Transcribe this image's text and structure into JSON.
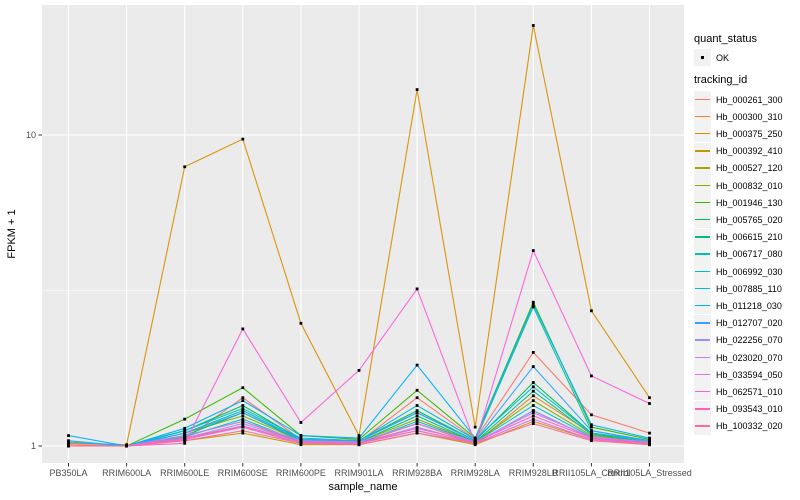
{
  "figure": {
    "background": "#FFFFFF",
    "panel_background": "#EBEBEB",
    "grid_color": "#FFFFFF",
    "tick_color": "#333333",
    "tick_label_color": "#4D4D4D",
    "title_color": "#000000",
    "point_color": "#000000"
  },
  "axes": {
    "x_title": "sample_name",
    "y_title": "FPKM + 1",
    "y_scale": "log10",
    "y_tick_labels": [
      "1",
      "10"
    ]
  },
  "legend": {
    "quant_status_title": "quant_status",
    "quant_status_items": [
      {
        "label": "OK",
        "shape": "point"
      }
    ],
    "tracking_id_title": "tracking_id"
  },
  "chart_data": {
    "type": "line",
    "title": "",
    "xlabel": "sample_name",
    "ylabel": "FPKM + 1",
    "y_scale": "log10",
    "ylim": [
      0.88,
      26.2
    ],
    "y_major_ticks": [
      1,
      10
    ],
    "y_minor_ticks": [
      3.1623
    ],
    "grid": true,
    "legend_position": "right",
    "point_shape": "square-dot",
    "point_color": "#000000",
    "categories": [
      "PB350LA",
      "RRIM600LA",
      "RRIM600LE",
      "RRIM600SE",
      "RRIM600PE",
      "RRIM901LA",
      "RRIM928BA",
      "RRIM928LA",
      "RRIM928LB",
      "RRII105LA_Control",
      "RRII105LA_Stressed"
    ],
    "series": [
      {
        "name": "Hb_000261_300",
        "color": "#F8766D",
        "values": [
          1.01,
          1.0,
          1.05,
          1.43,
          1.05,
          1.03,
          1.43,
          1.05,
          2.0,
          1.26,
          1.1
        ]
      },
      {
        "name": "Hb_000300_310",
        "color": "#EA8331",
        "values": [
          1.0,
          1.0,
          1.08,
          1.2,
          1.03,
          1.02,
          1.18,
          1.02,
          1.45,
          1.1,
          1.02
        ]
      },
      {
        "name": "Hb_000375_250",
        "color": "#D89000",
        "values": [
          1.02,
          1.01,
          7.9,
          9.7,
          2.48,
          1.08,
          14.0,
          1.15,
          22.5,
          2.72,
          1.43
        ]
      },
      {
        "name": "Hb_000392_410",
        "color": "#C09B00",
        "values": [
          1.0,
          1.0,
          1.04,
          1.1,
          1.01,
          1.01,
          1.1,
          1.01,
          1.2,
          1.05,
          1.01
        ]
      },
      {
        "name": "Hb_000527_120",
        "color": "#A3A500",
        "values": [
          1.0,
          1.0,
          1.06,
          1.15,
          1.02,
          1.02,
          1.12,
          1.02,
          1.3,
          1.06,
          1.02
        ]
      },
      {
        "name": "Hb_000832_010",
        "color": "#7CAE00",
        "values": [
          1.0,
          1.0,
          1.1,
          1.25,
          1.04,
          1.03,
          1.22,
          1.03,
          1.4,
          1.08,
          1.03
        ]
      },
      {
        "name": "Hb_001946_130",
        "color": "#39B600",
        "values": [
          1.0,
          1.0,
          1.22,
          1.54,
          1.08,
          1.05,
          1.51,
          1.06,
          2.9,
          1.15,
          1.05
        ]
      },
      {
        "name": "Hb_005765_020",
        "color": "#00BB4E",
        "values": [
          1.0,
          1.0,
          1.12,
          1.35,
          1.05,
          1.04,
          1.3,
          1.04,
          1.6,
          1.1,
          1.04
        ]
      },
      {
        "name": "Hb_006615_210",
        "color": "#00BF7D",
        "values": [
          1.0,
          1.0,
          1.08,
          1.28,
          1.04,
          1.03,
          1.25,
          1.03,
          1.5,
          1.09,
          1.03
        ]
      },
      {
        "name": "Hb_006717_080",
        "color": "#00C1A3",
        "values": [
          1.0,
          1.0,
          1.1,
          1.3,
          1.05,
          1.04,
          1.28,
          1.04,
          2.8,
          1.12,
          1.04
        ]
      },
      {
        "name": "Hb_006992_030",
        "color": "#00BFC4",
        "values": [
          1.0,
          1.0,
          1.07,
          1.22,
          1.03,
          1.02,
          1.2,
          1.03,
          1.35,
          1.07,
          1.02
        ]
      },
      {
        "name": "Hb_007885_110",
        "color": "#00BBDA",
        "values": [
          1.03,
          1.0,
          1.12,
          1.32,
          1.06,
          1.04,
          1.35,
          1.05,
          1.55,
          1.1,
          1.04
        ]
      },
      {
        "name": "Hb_011218_030",
        "color": "#00B0F6",
        "values": [
          1.08,
          1.0,
          1.14,
          1.4,
          1.08,
          1.06,
          1.82,
          1.06,
          2.85,
          1.17,
          1.06
        ]
      },
      {
        "name": "Hb_012707_020",
        "color": "#35A2FF",
        "values": [
          1.04,
          1.0,
          1.1,
          1.28,
          1.05,
          1.04,
          1.28,
          1.04,
          1.8,
          1.12,
          1.04
        ]
      },
      {
        "name": "Hb_022256_070",
        "color": "#9590FF",
        "values": [
          1.0,
          1.0,
          1.06,
          1.18,
          1.03,
          1.02,
          1.15,
          1.02,
          1.3,
          1.06,
          1.02
        ]
      },
      {
        "name": "Hb_023020_070",
        "color": "#C77CFF",
        "values": [
          1.0,
          1.0,
          1.08,
          1.2,
          1.04,
          1.03,
          1.18,
          1.03,
          1.28,
          1.07,
          1.03
        ]
      },
      {
        "name": "Hb_033594_050",
        "color": "#E76BF3",
        "values": [
          1.0,
          1.0,
          1.05,
          1.15,
          1.02,
          1.02,
          1.12,
          1.02,
          1.22,
          1.05,
          1.02
        ]
      },
      {
        "name": "Hb_062571_010",
        "color": "#FA62DB",
        "values": [
          1.0,
          1.0,
          1.02,
          2.38,
          1.19,
          1.75,
          3.2,
          1.02,
          4.25,
          1.68,
          1.37
        ]
      },
      {
        "name": "Hb_093543_010",
        "color": "#FF62BC",
        "values": [
          1.0,
          1.0,
          1.06,
          1.16,
          1.03,
          1.02,
          1.14,
          1.03,
          1.25,
          1.06,
          1.02
        ]
      },
      {
        "name": "Hb_100332_020",
        "color": "#FF6A98",
        "values": [
          1.0,
          1.0,
          1.04,
          1.12,
          1.02,
          1.01,
          1.1,
          1.02,
          1.18,
          1.04,
          1.01
        ]
      }
    ]
  }
}
